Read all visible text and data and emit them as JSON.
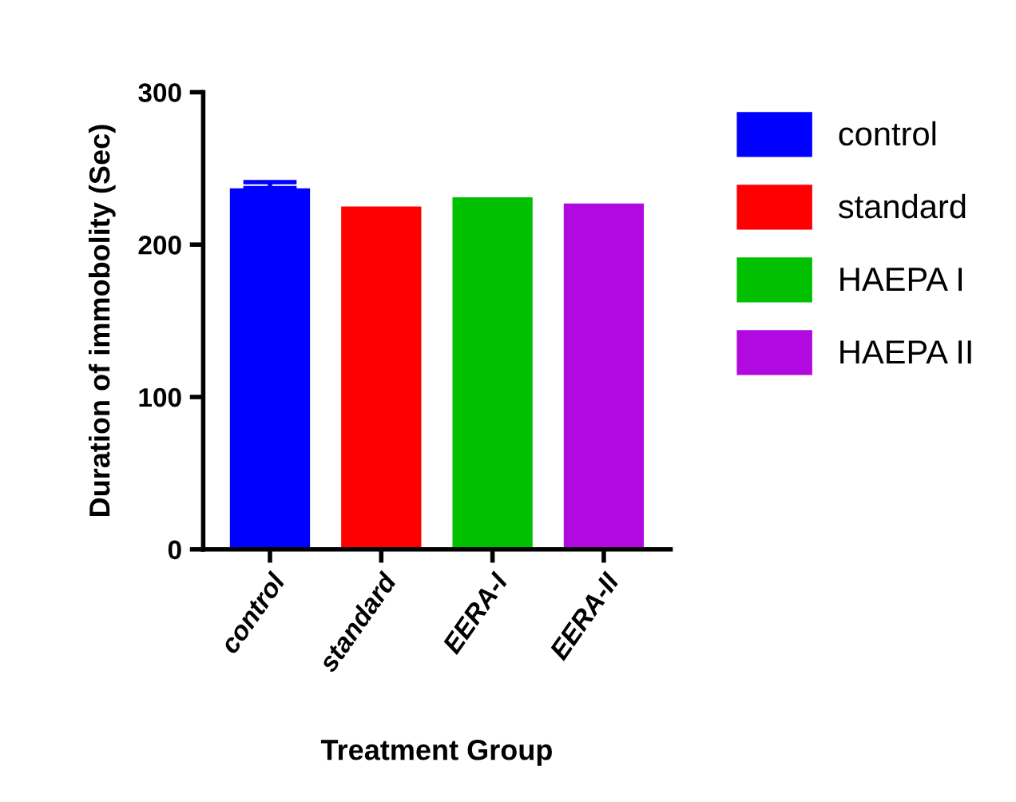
{
  "chart_data": {
    "type": "bar",
    "xlabel": "Treatment Group",
    "ylabel": "Duration of immobolity (Sec)",
    "categories": [
      "control",
      "standard",
      "EERA-I",
      "EERA-II"
    ],
    "series": [
      {
        "name": "control",
        "color": "#0000ff",
        "values": [
          237,
          null,
          null,
          null
        ],
        "errors": [
          4,
          null,
          null,
          null
        ]
      },
      {
        "name": "standard",
        "color": "#ff0000",
        "values": [
          null,
          225,
          null,
          null
        ]
      },
      {
        "name": "HAEPA I",
        "color": "#00c000",
        "values": [
          null,
          null,
          231,
          null
        ]
      },
      {
        "name": "HAEPA II",
        "color": "#b00ae0",
        "values": [
          null,
          null,
          null,
          227
        ]
      }
    ],
    "ylim": [
      0,
      300
    ],
    "yticks": [
      0,
      100,
      200,
      300
    ],
    "grid": false,
    "legend": "right"
  }
}
